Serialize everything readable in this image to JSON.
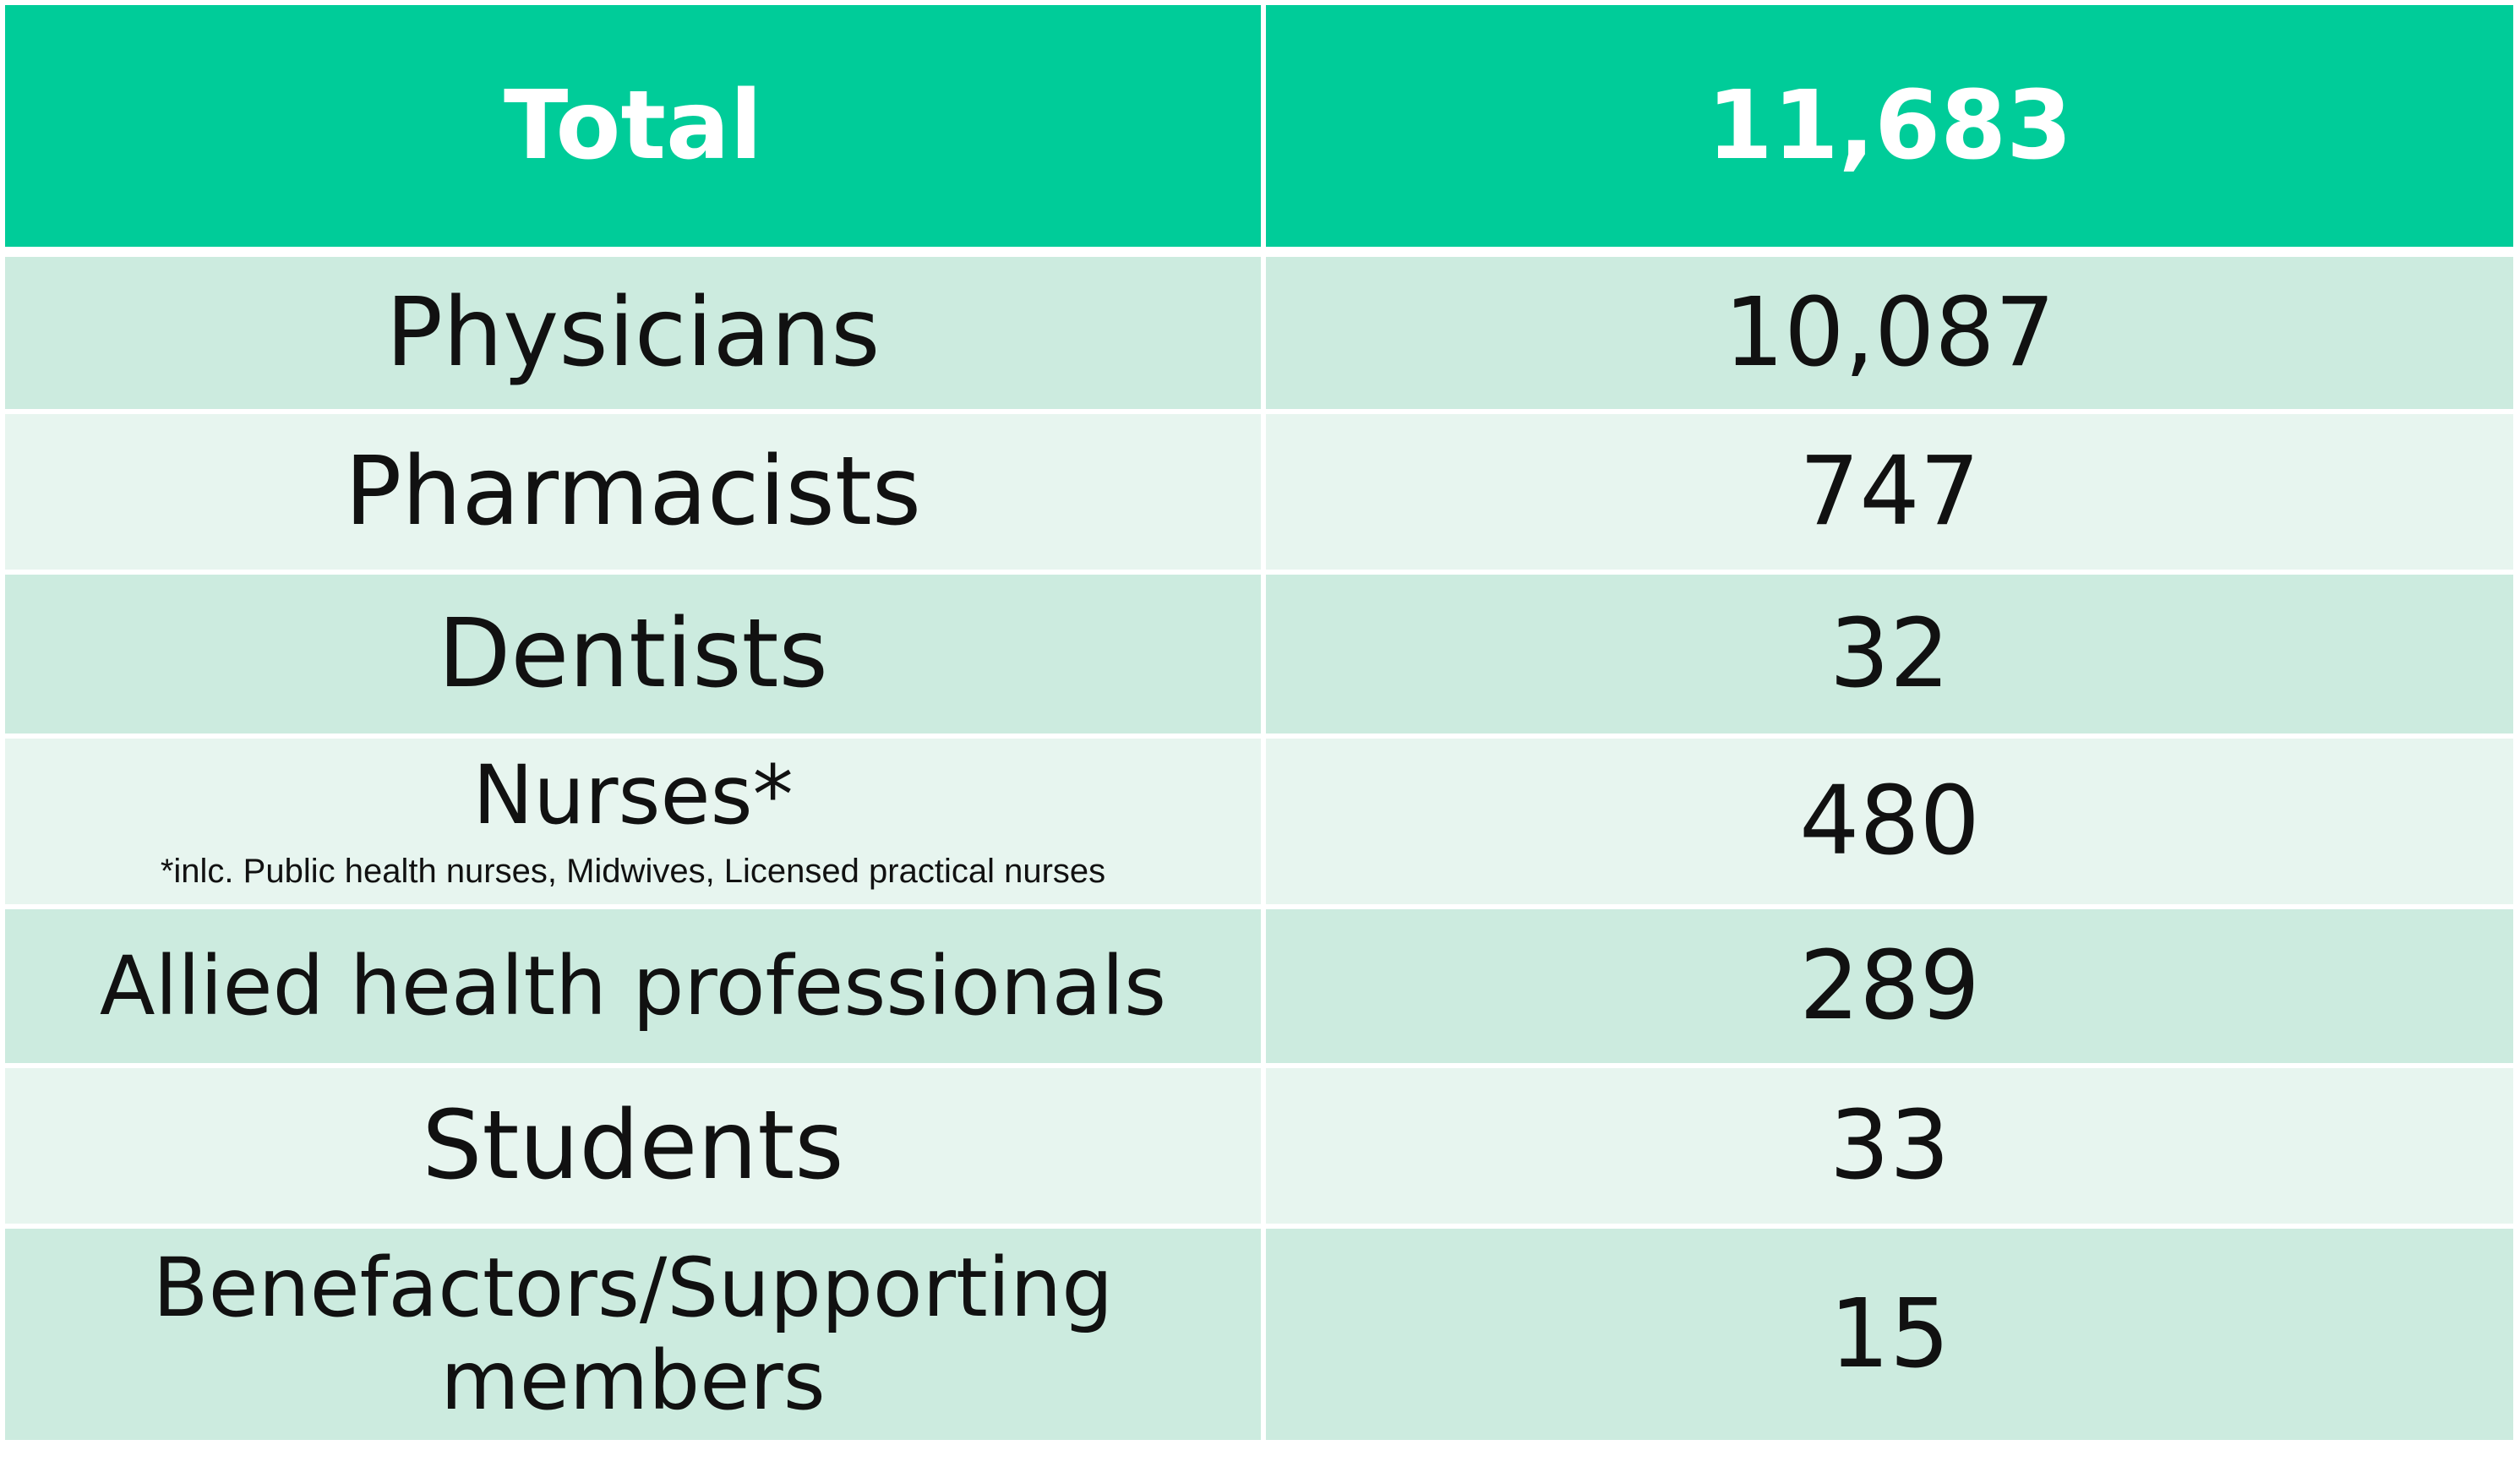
{
  "colors": {
    "header": "#00CC99",
    "row_dark": "#CCEBDF",
    "row_light": "#E7F5EF",
    "text": "#111111",
    "header_text": "#FFFFFF"
  },
  "chart_data": {
    "type": "table",
    "columns": [
      "Total",
      "11,683"
    ],
    "header": {
      "label": "Total",
      "value": "11,683"
    },
    "rows": [
      {
        "label": "Physicians",
        "value": "10,087"
      },
      {
        "label": "Pharmacists",
        "value": "747"
      },
      {
        "label": "Dentists",
        "value": "32"
      },
      {
        "label": "Nurses*",
        "note": "*inlc. Public health nurses, Midwives, Licensed practical nurses",
        "value": "480"
      },
      {
        "label": "Allied health professionals",
        "value": "289"
      },
      {
        "label": "Students",
        "value": "33"
      },
      {
        "label_line1": "Benefactors/Supporting",
        "label_line2": "members",
        "value": "15"
      }
    ]
  }
}
